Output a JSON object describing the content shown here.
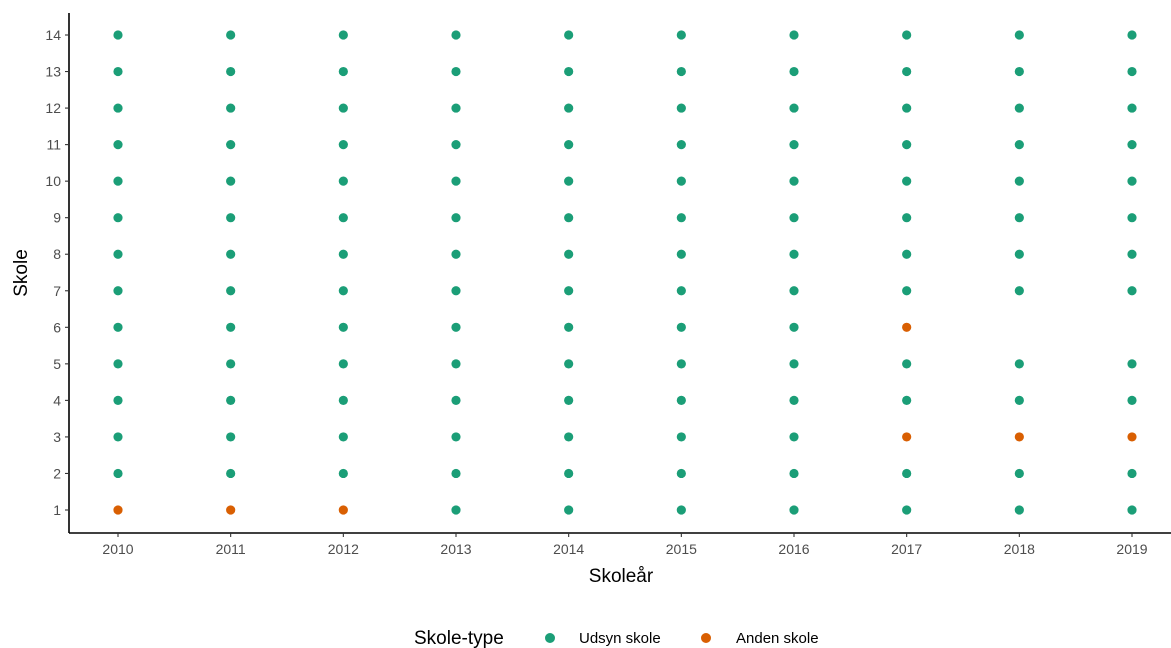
{
  "chart_data": {
    "type": "scatter",
    "title": "",
    "xlabel": "Skoleår",
    "ylabel": "Skole",
    "x_ticks": [
      "2010",
      "2011",
      "2012",
      "2013",
      "2014",
      "2015",
      "2016",
      "2017",
      "2018",
      "2019"
    ],
    "y_ticks": [
      "1",
      "2",
      "3",
      "4",
      "5",
      "6",
      "7",
      "8",
      "9",
      "10",
      "11",
      "12",
      "13",
      "14"
    ],
    "xlim": [
      2010,
      2019
    ],
    "ylim": [
      1,
      14
    ],
    "grid": false,
    "legend": {
      "title": "Skole-type",
      "position": "bottom",
      "entries": [
        {
          "name": "Udsyn skole",
          "color": "#1b9e77"
        },
        {
          "name": "Anden skole",
          "color": "#d95f02"
        }
      ]
    },
    "series": [
      {
        "name": "Udsyn skole",
        "color": "#1b9e77",
        "points": [
          [
            2010,
            2
          ],
          [
            2010,
            3
          ],
          [
            2010,
            4
          ],
          [
            2010,
            5
          ],
          [
            2010,
            6
          ],
          [
            2010,
            7
          ],
          [
            2010,
            8
          ],
          [
            2010,
            9
          ],
          [
            2010,
            10
          ],
          [
            2010,
            11
          ],
          [
            2010,
            12
          ],
          [
            2010,
            13
          ],
          [
            2010,
            14
          ],
          [
            2011,
            2
          ],
          [
            2011,
            3
          ],
          [
            2011,
            4
          ],
          [
            2011,
            5
          ],
          [
            2011,
            6
          ],
          [
            2011,
            7
          ],
          [
            2011,
            8
          ],
          [
            2011,
            9
          ],
          [
            2011,
            10
          ],
          [
            2011,
            11
          ],
          [
            2011,
            12
          ],
          [
            2011,
            13
          ],
          [
            2011,
            14
          ],
          [
            2012,
            2
          ],
          [
            2012,
            3
          ],
          [
            2012,
            4
          ],
          [
            2012,
            5
          ],
          [
            2012,
            6
          ],
          [
            2012,
            7
          ],
          [
            2012,
            8
          ],
          [
            2012,
            9
          ],
          [
            2012,
            10
          ],
          [
            2012,
            11
          ],
          [
            2012,
            12
          ],
          [
            2012,
            13
          ],
          [
            2012,
            14
          ],
          [
            2013,
            1
          ],
          [
            2013,
            2
          ],
          [
            2013,
            3
          ],
          [
            2013,
            4
          ],
          [
            2013,
            5
          ],
          [
            2013,
            6
          ],
          [
            2013,
            7
          ],
          [
            2013,
            8
          ],
          [
            2013,
            9
          ],
          [
            2013,
            10
          ],
          [
            2013,
            11
          ],
          [
            2013,
            12
          ],
          [
            2013,
            13
          ],
          [
            2013,
            14
          ],
          [
            2014,
            1
          ],
          [
            2014,
            2
          ],
          [
            2014,
            3
          ],
          [
            2014,
            4
          ],
          [
            2014,
            5
          ],
          [
            2014,
            6
          ],
          [
            2014,
            7
          ],
          [
            2014,
            8
          ],
          [
            2014,
            9
          ],
          [
            2014,
            10
          ],
          [
            2014,
            11
          ],
          [
            2014,
            12
          ],
          [
            2014,
            13
          ],
          [
            2014,
            14
          ],
          [
            2015,
            1
          ],
          [
            2015,
            2
          ],
          [
            2015,
            3
          ],
          [
            2015,
            4
          ],
          [
            2015,
            5
          ],
          [
            2015,
            6
          ],
          [
            2015,
            7
          ],
          [
            2015,
            8
          ],
          [
            2015,
            9
          ],
          [
            2015,
            10
          ],
          [
            2015,
            11
          ],
          [
            2015,
            12
          ],
          [
            2015,
            13
          ],
          [
            2015,
            14
          ],
          [
            2016,
            1
          ],
          [
            2016,
            2
          ],
          [
            2016,
            3
          ],
          [
            2016,
            4
          ],
          [
            2016,
            5
          ],
          [
            2016,
            6
          ],
          [
            2016,
            7
          ],
          [
            2016,
            8
          ],
          [
            2016,
            9
          ],
          [
            2016,
            10
          ],
          [
            2016,
            11
          ],
          [
            2016,
            12
          ],
          [
            2016,
            13
          ],
          [
            2016,
            14
          ],
          [
            2017,
            1
          ],
          [
            2017,
            2
          ],
          [
            2017,
            4
          ],
          [
            2017,
            5
          ],
          [
            2017,
            7
          ],
          [
            2017,
            8
          ],
          [
            2017,
            9
          ],
          [
            2017,
            10
          ],
          [
            2017,
            11
          ],
          [
            2017,
            12
          ],
          [
            2017,
            13
          ],
          [
            2017,
            14
          ],
          [
            2018,
            1
          ],
          [
            2018,
            2
          ],
          [
            2018,
            4
          ],
          [
            2018,
            5
          ],
          [
            2018,
            7
          ],
          [
            2018,
            8
          ],
          [
            2018,
            9
          ],
          [
            2018,
            10
          ],
          [
            2018,
            11
          ],
          [
            2018,
            12
          ],
          [
            2018,
            13
          ],
          [
            2018,
            14
          ],
          [
            2019,
            1
          ],
          [
            2019,
            2
          ],
          [
            2019,
            4
          ],
          [
            2019,
            5
          ],
          [
            2019,
            7
          ],
          [
            2019,
            8
          ],
          [
            2019,
            9
          ],
          [
            2019,
            10
          ],
          [
            2019,
            11
          ],
          [
            2019,
            12
          ],
          [
            2019,
            13
          ],
          [
            2019,
            14
          ]
        ]
      },
      {
        "name": "Anden skole",
        "color": "#d95f02",
        "points": [
          [
            2010,
            1
          ],
          [
            2011,
            1
          ],
          [
            2012,
            1
          ],
          [
            2017,
            3
          ],
          [
            2017,
            6
          ],
          [
            2018,
            3
          ],
          [
            2019,
            3
          ]
        ]
      }
    ]
  }
}
